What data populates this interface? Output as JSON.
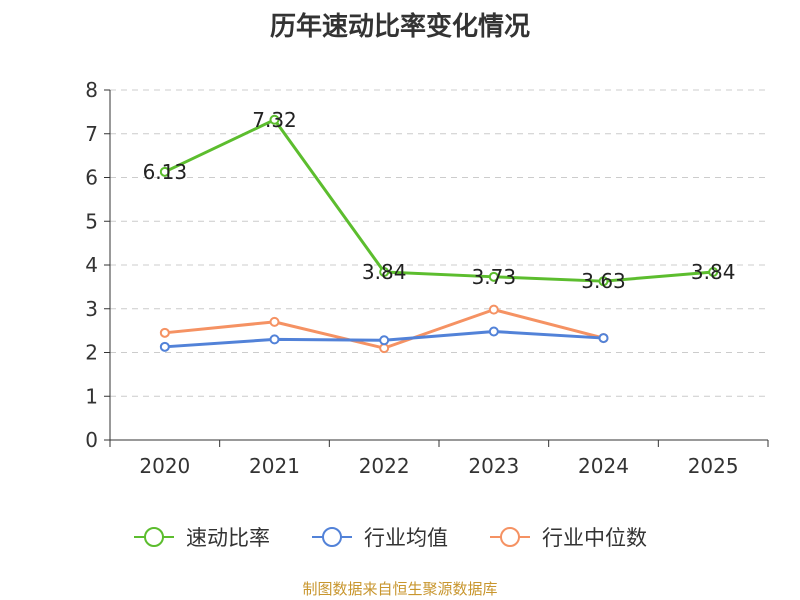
{
  "chart_data": {
    "type": "line",
    "title": "历年速动比率变化情况",
    "categories": [
      "2020",
      "2021",
      "2022",
      "2023",
      "2024",
      "2025"
    ],
    "ylim": [
      0,
      8
    ],
    "yticks": [
      0,
      1,
      2,
      3,
      4,
      5,
      6,
      7,
      8
    ],
    "grid": true,
    "legend_position": "bottom",
    "series": [
      {
        "name": "速动比率",
        "color": "#5cbd2e",
        "values": [
          6.13,
          7.32,
          3.84,
          3.73,
          3.63,
          3.84
        ],
        "labels": [
          "6.13",
          "7.32",
          "3.84",
          "3.73",
          "3.63",
          "3.84"
        ]
      },
      {
        "name": "行业均值",
        "color": "#5282d8",
        "values": [
          2.13,
          2.3,
          2.28,
          2.48,
          2.33,
          null
        ]
      },
      {
        "name": "行业中位数",
        "color": "#f59263",
        "values": [
          2.45,
          2.7,
          2.1,
          2.98,
          2.33,
          null
        ]
      }
    ],
    "source": "制图数据来自恒生聚源数据库"
  }
}
